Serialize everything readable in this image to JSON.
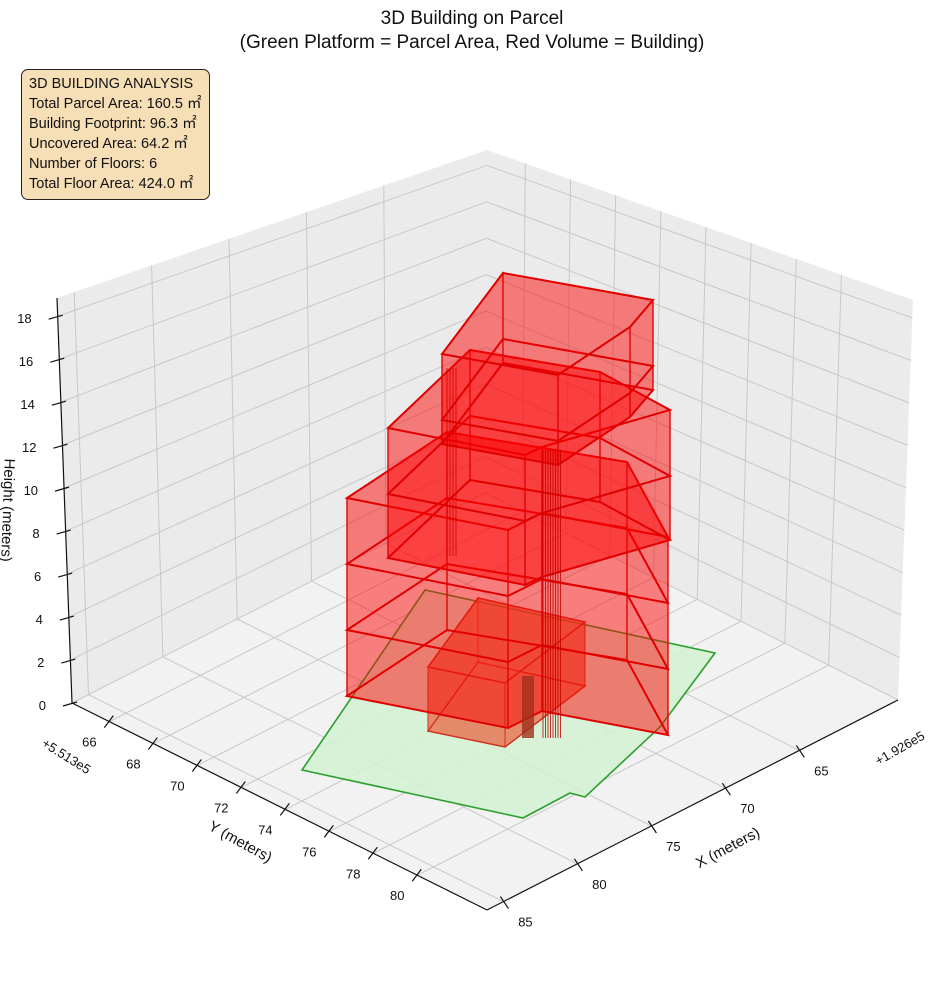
{
  "chart_data": {
    "type": "3d-polygon",
    "title": "3D Building on Parcel",
    "subtitle": "(Green Platform = Parcel Area, Red Volume = Building)",
    "xlabel": "X (meters)",
    "ylabel": "Y (meters)",
    "zlabel": "Height (meters)",
    "x_offset_text": "+1.926e5",
    "y_offset_text": "+5.513e5",
    "x_ticks": [
      "65",
      "70",
      "75",
      "80",
      "85"
    ],
    "y_ticks": [
      "66",
      "68",
      "70",
      "72",
      "74",
      "76",
      "78",
      "80"
    ],
    "z_ticks": [
      "0",
      "2",
      "4",
      "6",
      "8",
      "10",
      "12",
      "14",
      "16",
      "18"
    ],
    "zlim": [
      0,
      18
    ],
    "grid": true,
    "series": [
      {
        "name": "Parcel Area",
        "kind": "platform",
        "color": "#2ca02c",
        "fill": "#d4f2d4"
      },
      {
        "name": "Building",
        "kind": "volume",
        "color": "#e00000",
        "fill": "#ff0000"
      }
    ],
    "info_box": {
      "heading": "3D BUILDING ANALYSIS",
      "lines": [
        "Total Parcel Area: 160.5 ㎡",
        "Building Footprint: 96.3 ㎡",
        "Uncovered Area: 64.2 ㎡",
        "Number of Floors: 6",
        "Total Floor Area: 424.0 ㎡"
      ],
      "background": "#f5deb3"
    }
  }
}
